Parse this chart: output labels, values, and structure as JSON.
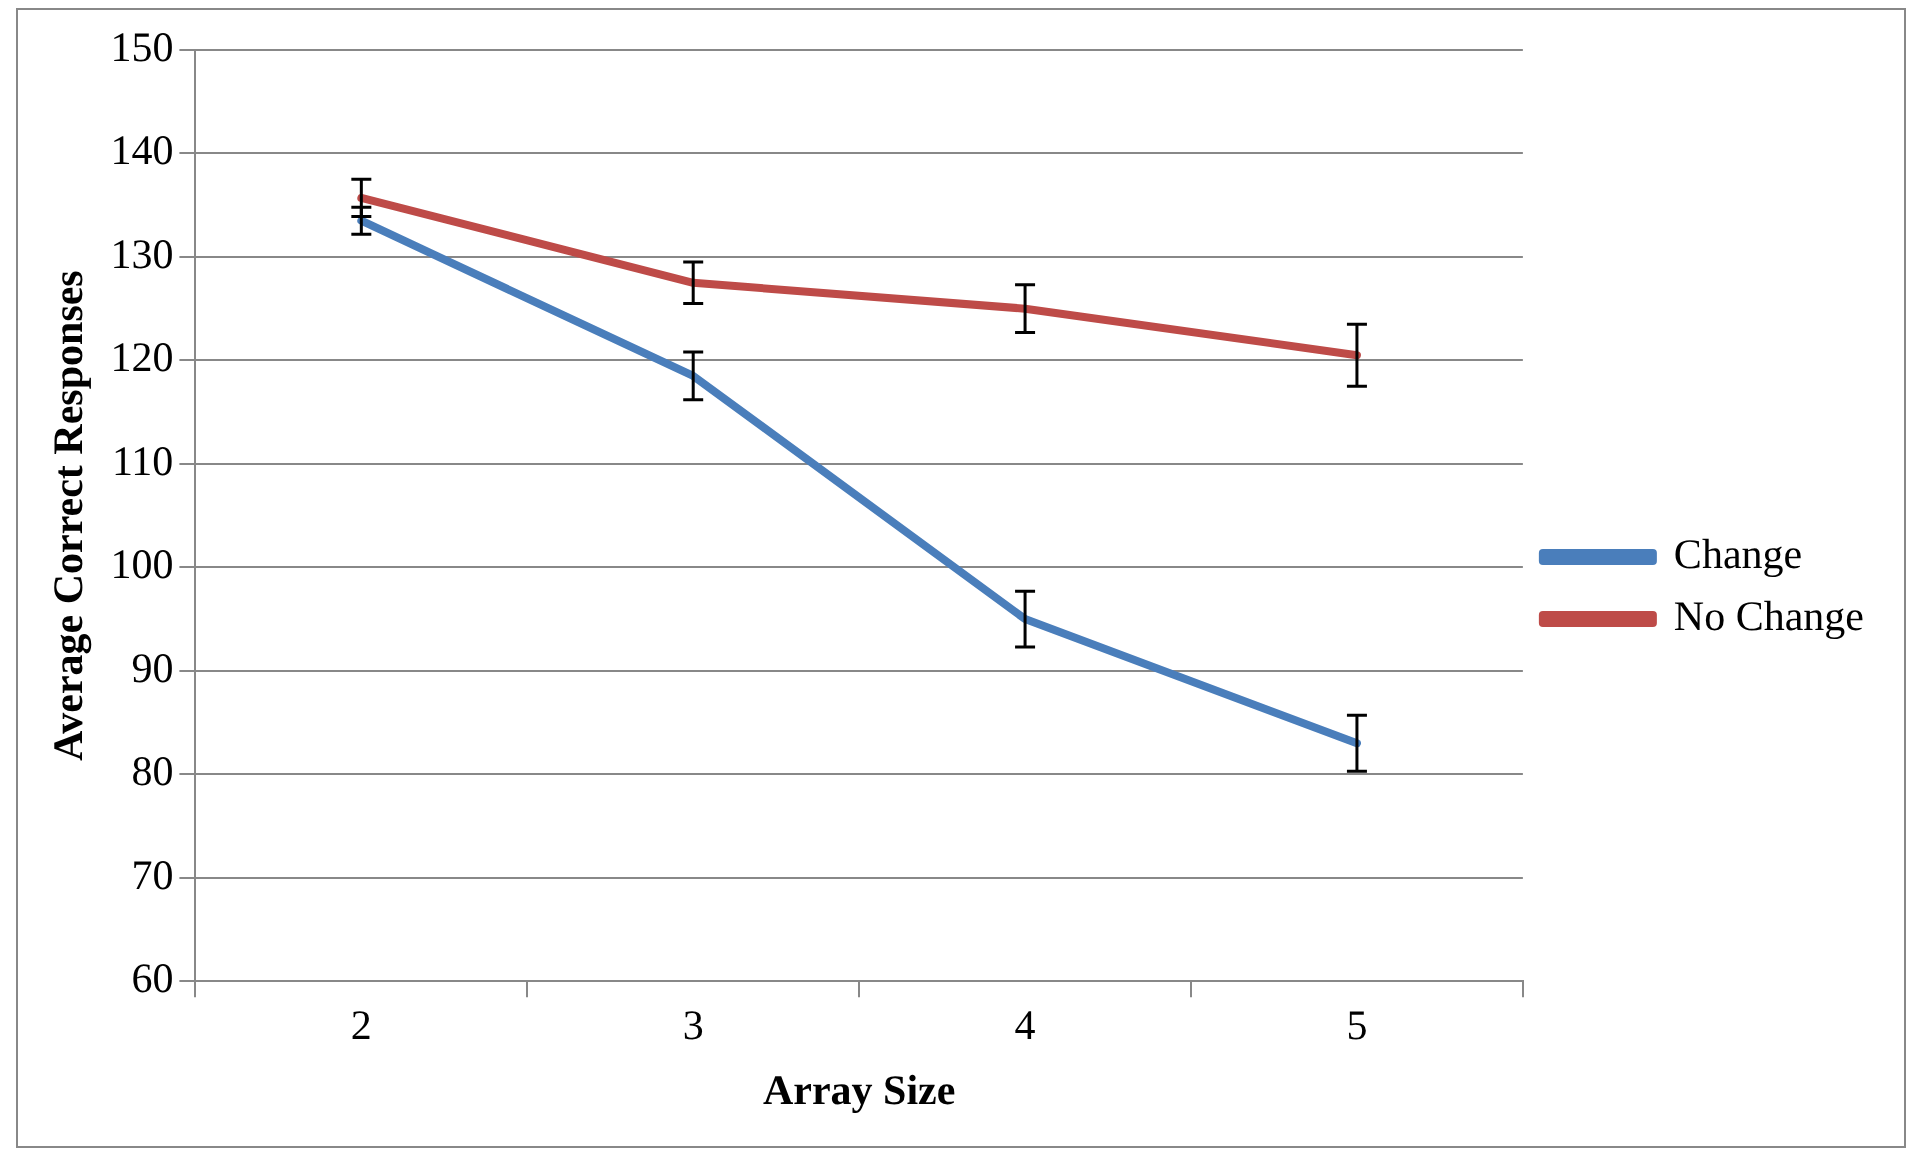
{
  "chart_data": {
    "type": "line",
    "xlabel": "Array Size",
    "ylabel": "Average Correct Responses",
    "categories": [
      "2",
      "3",
      "4",
      "5"
    ],
    "series": [
      {
        "name": "Change",
        "color": "#4a7ebb",
        "values": [
          133.5,
          118.5,
          95,
          83
        ],
        "errors": [
          1.3,
          2.3,
          2.7,
          2.7
        ]
      },
      {
        "name": "No Change",
        "color": "#be4b48",
        "values": [
          135.7,
          127.5,
          125,
          120.5
        ],
        "errors": [
          1.8,
          2,
          2.3,
          3
        ]
      }
    ],
    "ylim": [
      60,
      150
    ],
    "yticks": [
      60,
      70,
      80,
      90,
      100,
      110,
      120,
      130,
      140,
      150
    ],
    "grid": "y",
    "legend": "right",
    "marker": "none"
  }
}
